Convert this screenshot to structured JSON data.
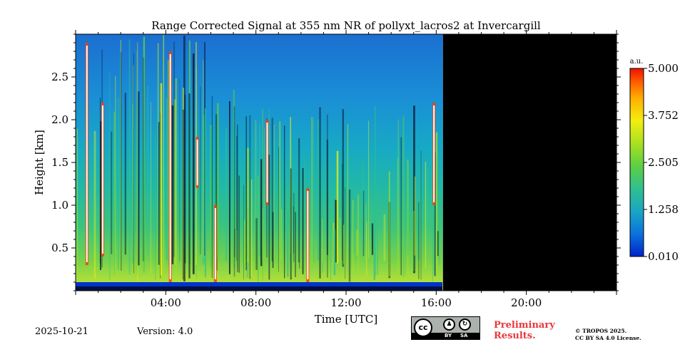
{
  "chart_data": {
    "type": "heatmap",
    "title": "Range Corrected Signal at 355 nm NR of pollyxt_lacros2 at Invercargill",
    "xlabel": "Time [UTC]",
    "ylabel": "Height [km]",
    "xlim_hours": [
      0,
      24
    ],
    "ylim_km": [
      0,
      3.0
    ],
    "x_ticks": [
      {
        "value": 4,
        "label": "04:00"
      },
      {
        "value": 8,
        "label": "08:00"
      },
      {
        "value": 12,
        "label": "12:00"
      },
      {
        "value": 16,
        "label": "16:00"
      },
      {
        "value": 20,
        "label": "20:00"
      }
    ],
    "y_ticks": [
      {
        "value": 0.5,
        "label": "0.5"
      },
      {
        "value": 1.0,
        "label": "1.0"
      },
      {
        "value": 1.5,
        "label": "1.5"
      },
      {
        "value": 2.0,
        "label": "2.0"
      },
      {
        "value": 2.5,
        "label": "2.5"
      }
    ],
    "data_end_hours": 16.3,
    "no_data_color": "#000000",
    "colorbar": {
      "unit": "a.u.",
      "min": 0.01,
      "max": 5.0,
      "ticks": [
        {
          "value": 0.01,
          "label": "0.010"
        },
        {
          "value": 1.258,
          "label": "1.258"
        },
        {
          "value": 2.505,
          "label": "2.505"
        },
        {
          "value": 3.752,
          "label": "3.752"
        },
        {
          "value": 5.0,
          "label": "5.000"
        }
      ],
      "colormap": [
        "#0022cc",
        "#0a72dc",
        "#1aa6c4",
        "#2fc08f",
        "#5dcf43",
        "#a8e020",
        "#f2ee10",
        "#ffb000",
        "#ff5a00",
        "#ee1100"
      ]
    },
    "clouds": [
      {
        "time": 0.5,
        "base_km": 0.3,
        "top_km": 2.9
      },
      {
        "time": 1.2,
        "base_km": 0.4,
        "top_km": 2.2
      },
      {
        "time": 4.2,
        "base_km": 0.1,
        "top_km": 2.8
      },
      {
        "time": 5.4,
        "base_km": 1.2,
        "top_km": 1.8
      },
      {
        "time": 6.2,
        "base_km": 0.1,
        "top_km": 1.0
      },
      {
        "time": 8.5,
        "base_km": 1.0,
        "top_km": 2.0
      },
      {
        "time": 10.3,
        "base_km": 0.1,
        "top_km": 1.2
      },
      {
        "time": 15.9,
        "base_km": 1.0,
        "top_km": 2.2
      }
    ]
  },
  "footer": {
    "date": "2025-10-21",
    "version": "Version: 4.0",
    "preliminary_line1": "Preliminary",
    "preliminary_line2": "Results.",
    "copyright_line1": "© TROPOS 2025.",
    "copyright_line2": "CC BY SA 4.0 License.",
    "license_badge": {
      "cc": "cc",
      "by": "BY",
      "sa": "SA"
    }
  },
  "colors": {
    "preliminary": "#e8383a"
  }
}
